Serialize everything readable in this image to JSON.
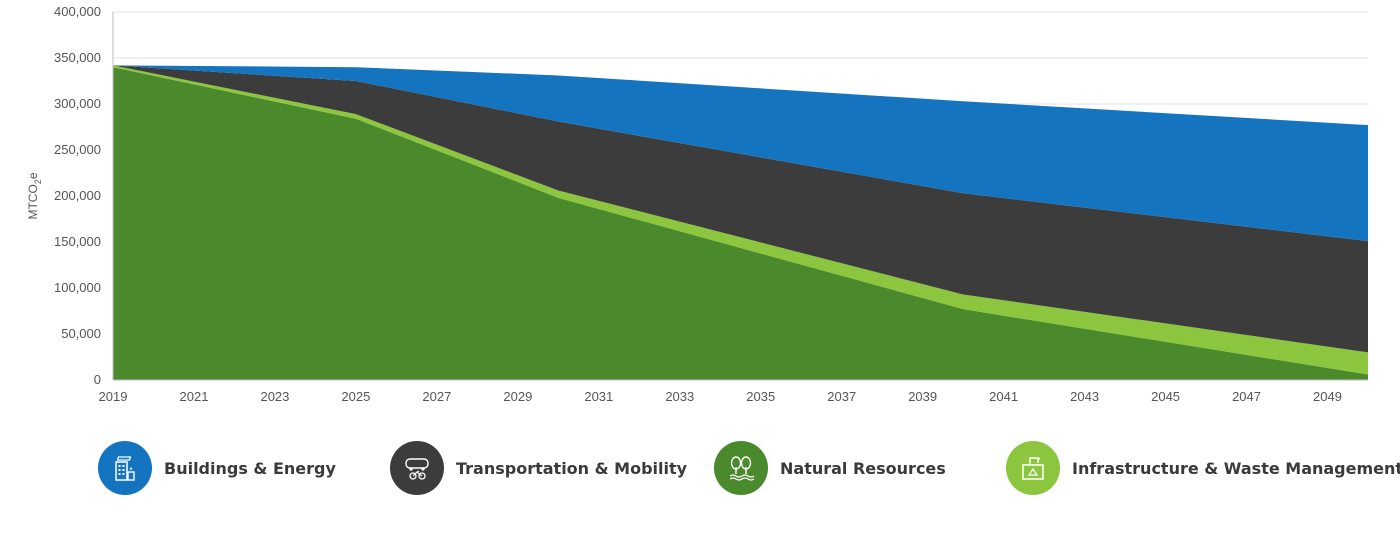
{
  "chart_data": {
    "type": "area",
    "stacked": true,
    "ylabel": "MTCO2e",
    "ylabel_parts": {
      "main": "MTCO",
      "sub": "2",
      "suffix": "e"
    },
    "xlim": [
      2019,
      2050
    ],
    "ylim": [
      0,
      400000
    ],
    "x_ticks": [
      "2019",
      "2021",
      "2023",
      "2025",
      "2027",
      "2029",
      "2031",
      "2033",
      "2035",
      "2037",
      "2039",
      "2041",
      "2043",
      "2045",
      "2047",
      "2049"
    ],
    "y_ticks": [
      "0",
      "50,000",
      "100,000",
      "150,000",
      "200,000",
      "250,000",
      "300,000",
      "350,000",
      "400,000"
    ],
    "x": [
      2019,
      2025,
      2030,
      2040,
      2050
    ],
    "grid": true,
    "series_order_bottom_to_top": [
      "Natural Resources",
      "Infrastructure & Waste Management",
      "Transportation & Mobility",
      "Buildings & Energy"
    ],
    "series": [
      {
        "name": "Natural Resources",
        "color": "#4a8a2c",
        "values": [
          340000,
          284000,
          198000,
          77000,
          6000
        ]
      },
      {
        "name": "Infrastructure & Waste Management",
        "color": "#8cc63f",
        "values": [
          2000,
          5000,
          8000,
          16000,
          24000
        ]
      },
      {
        "name": "Transportation & Mobility",
        "color": "#3c3c3c",
        "values": [
          0,
          36000,
          75000,
          110000,
          121000
        ]
      },
      {
        "name": "Buildings & Energy",
        "color": "#1474bf",
        "values": [
          0,
          15000,
          50000,
          100000,
          126000
        ]
      }
    ]
  },
  "legend": [
    {
      "label": "Buildings & Energy",
      "color": "#1474bf",
      "icon": "building-solar-icon"
    },
    {
      "label": "Transportation & Mobility",
      "color": "#3c3c3c",
      "icon": "bus-bicycle-icon"
    },
    {
      "label": "Natural Resources",
      "color": "#4a8a2c",
      "icon": "trees-water-icon"
    },
    {
      "label": "Infrastructure & Waste Management",
      "color": "#8cc63f",
      "icon": "recycling-bin-icon"
    }
  ]
}
